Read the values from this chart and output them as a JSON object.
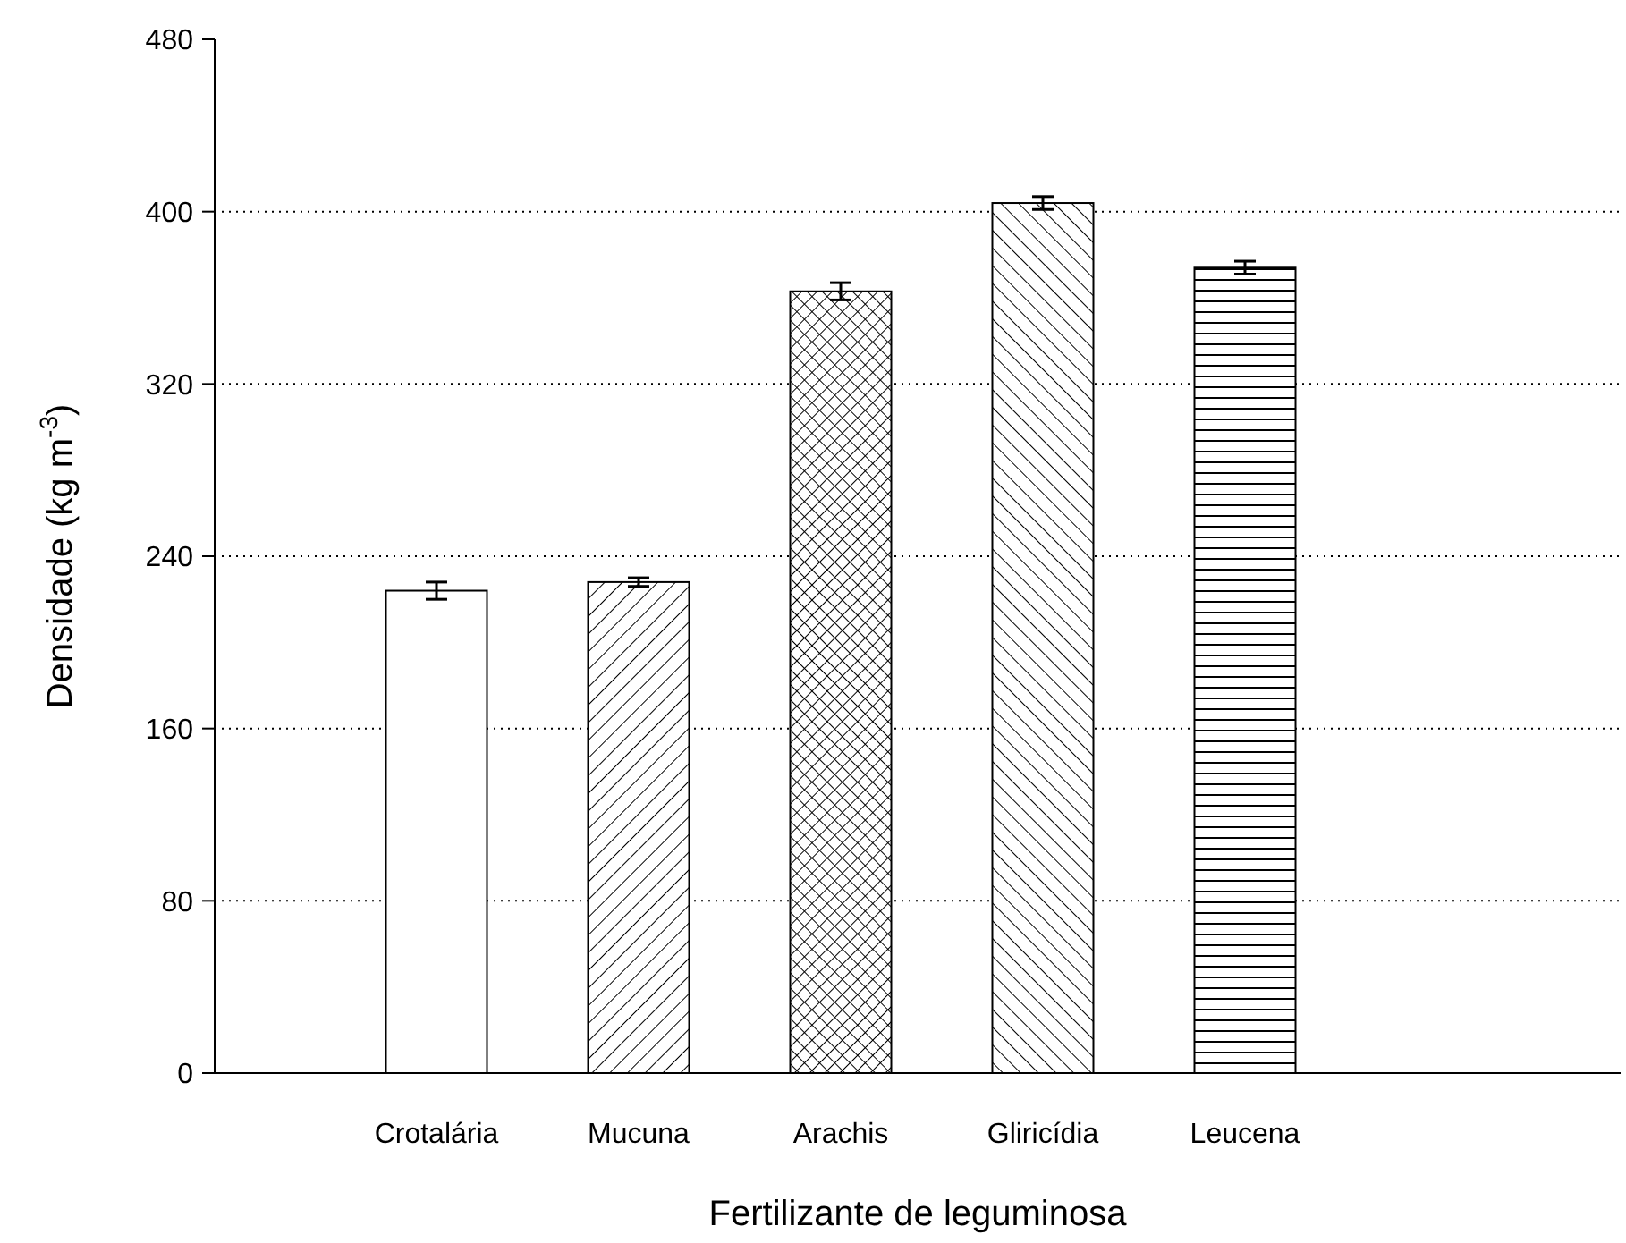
{
  "chart_data": {
    "type": "bar",
    "xlabel": "Fertilizante de leguminosa",
    "ylabel": "Densidade (kg m$^{-3}$)",
    "categories": [
      "Crotalária",
      "Mucuna",
      "Arachis",
      "Gliricídia",
      "Leucena"
    ],
    "values": [
      224,
      228,
      363,
      404,
      374
    ],
    "errors": [
      4,
      2,
      4,
      3,
      3
    ],
    "colors": [
      "#ffffff",
      "#ffffff",
      "#ffffff",
      "#ffffff",
      "#ffffff"
    ],
    "ylim": [
      0,
      480
    ],
    "yticks": [
      0,
      80,
      160,
      240,
      320,
      400,
      480
    ],
    "grid": "y"
  }
}
